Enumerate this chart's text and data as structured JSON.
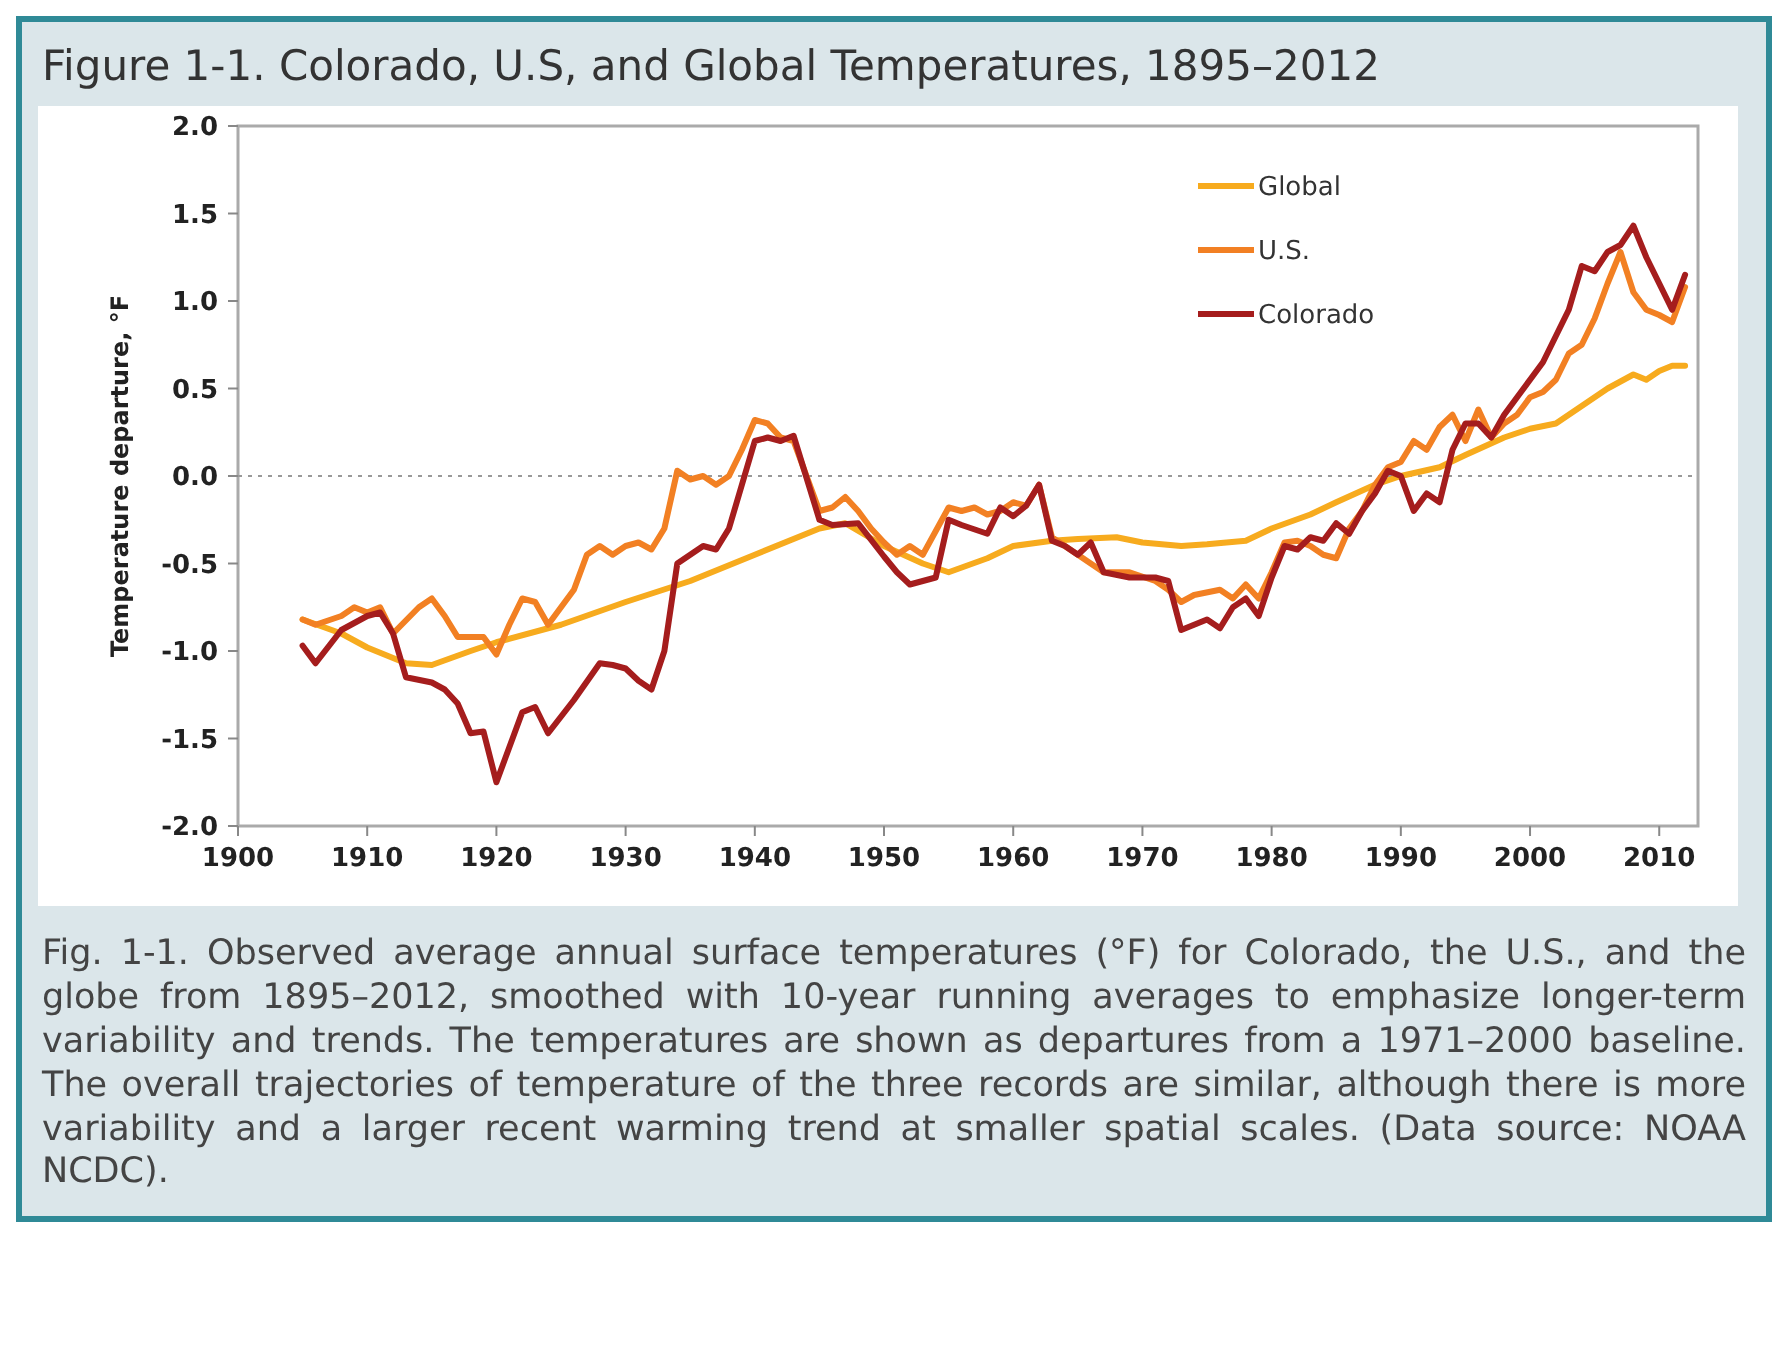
{
  "chart_data": {
    "type": "line",
    "title": "Figure 1-1. Colorado, U.S, and Global Temperatures, 1895–2012",
    "ylabel": "Temperature departure, °F",
    "xlim": [
      1900,
      2013
    ],
    "xticks": [
      1900,
      1910,
      1920,
      1930,
      1940,
      1950,
      1960,
      1970,
      1980,
      1990,
      2000,
      2010
    ],
    "ylim": [
      -2,
      2
    ],
    "yticks": [
      {
        "value": 2,
        "label": "2.0"
      },
      {
        "value": 1.5,
        "label": "1.5"
      },
      {
        "value": 1,
        "label": "1.0"
      },
      {
        "value": 0.5,
        "label": "0.5"
      },
      {
        "value": 0,
        "label": "0.0"
      },
      {
        "value": -0.5,
        "label": "-0.5"
      },
      {
        "value": -1,
        "label": "-1.0"
      },
      {
        "value": -1.5,
        "label": "-1.5"
      },
      {
        "value": -2,
        "label": "-2.0"
      }
    ],
    "grid": false,
    "legend": "top right",
    "marker": "none",
    "line_style": "solid",
    "ref_lines": [
      {
        "axis": "y",
        "value": 0,
        "color": "#999999",
        "line_style": "dotted"
      }
    ],
    "series": [
      {
        "name": "Global",
        "color": "#f7ab1e",
        "x": [
          1905,
          1908,
          1910,
          1913,
          1915,
          1918,
          1920,
          1925,
          1930,
          1935,
          1940,
          1945,
          1947,
          1950,
          1953,
          1955,
          1958,
          1960,
          1963,
          1965,
          1968,
          1970,
          1973,
          1975,
          1978,
          1980,
          1983,
          1985,
          1988,
          1990,
          1993,
          1995,
          1998,
          2000,
          2002,
          2004,
          2006,
          2008,
          2009,
          2010,
          2011,
          2012
        ],
        "values": [
          -0.82,
          -0.9,
          -0.98,
          -1.07,
          -1.08,
          -1.0,
          -0.95,
          -0.85,
          -0.72,
          -0.6,
          -0.45,
          -0.3,
          -0.27,
          -0.4,
          -0.5,
          -0.55,
          -0.47,
          -0.4,
          -0.37,
          -0.36,
          -0.35,
          -0.38,
          -0.4,
          -0.39,
          -0.37,
          -0.3,
          -0.22,
          -0.15,
          -0.05,
          0.0,
          0.05,
          0.12,
          0.22,
          0.27,
          0.3,
          0.4,
          0.5,
          0.58,
          0.55,
          0.6,
          0.63,
          0.63
        ]
      },
      {
        "name": "U.S.",
        "color": "#f28023",
        "x": [
          1905,
          1906,
          1908,
          1909,
          1910,
          1911,
          1912,
          1914,
          1915,
          1916,
          1917,
          1919,
          1920,
          1921,
          1922,
          1923,
          1924,
          1926,
          1927,
          1928,
          1929,
          1930,
          1931,
          1932,
          1933,
          1934,
          1935,
          1936,
          1937,
          1938,
          1939,
          1940,
          1941,
          1942,
          1943,
          1945,
          1946,
          1947,
          1948,
          1949,
          1950,
          1951,
          1952,
          1953,
          1955,
          1956,
          1957,
          1958,
          1959,
          1960,
          1961,
          1962,
          1963,
          1965,
          1967,
          1969,
          1971,
          1972,
          1973,
          1974,
          1976,
          1977,
          1978,
          1979,
          1980,
          1981,
          1982,
          1983,
          1984,
          1985,
          1986,
          1987,
          1988,
          1989,
          1990,
          1991,
          1992,
          1993,
          1994,
          1995,
          1996,
          1997,
          1998,
          1999,
          2000,
          2001,
          2002,
          2003,
          2004,
          2005,
          2006,
          2007,
          2008,
          2009,
          2010,
          2011,
          2012
        ],
        "values": [
          -0.82,
          -0.85,
          -0.8,
          -0.75,
          -0.78,
          -0.75,
          -0.9,
          -0.75,
          -0.7,
          -0.8,
          -0.92,
          -0.92,
          -1.02,
          -0.85,
          -0.7,
          -0.72,
          -0.85,
          -0.65,
          -0.45,
          -0.4,
          -0.45,
          -0.4,
          -0.38,
          -0.42,
          -0.3,
          0.03,
          -0.02,
          0.0,
          -0.05,
          0.0,
          0.15,
          0.32,
          0.3,
          0.22,
          0.2,
          -0.2,
          -0.18,
          -0.12,
          -0.2,
          -0.3,
          -0.38,
          -0.45,
          -0.4,
          -0.45,
          -0.18,
          -0.2,
          -0.18,
          -0.22,
          -0.2,
          -0.15,
          -0.17,
          -0.05,
          -0.35,
          -0.45,
          -0.55,
          -0.55,
          -0.6,
          -0.65,
          -0.72,
          -0.68,
          -0.65,
          -0.7,
          -0.62,
          -0.7,
          -0.55,
          -0.38,
          -0.37,
          -0.4,
          -0.45,
          -0.47,
          -0.3,
          -0.2,
          -0.05,
          0.05,
          0.08,
          0.2,
          0.15,
          0.28,
          0.35,
          0.2,
          0.38,
          0.22,
          0.3,
          0.35,
          0.45,
          0.48,
          0.55,
          0.7,
          0.75,
          0.9,
          1.1,
          1.28,
          1.05,
          0.95,
          0.92,
          0.88,
          1.08
        ]
      },
      {
        "name": "Colorado",
        "color": "#a51d1d",
        "x": [
          1905,
          1906,
          1908,
          1910,
          1911,
          1912,
          1913,
          1915,
          1916,
          1917,
          1918,
          1919,
          1920,
          1922,
          1923,
          1924,
          1926,
          1928,
          1929,
          1930,
          1931,
          1932,
          1933,
          1934,
          1936,
          1937,
          1938,
          1940,
          1941,
          1942,
          1943,
          1945,
          1946,
          1948,
          1950,
          1951,
          1952,
          1953,
          1954,
          1955,
          1956,
          1958,
          1959,
          1960,
          1961,
          1962,
          1963,
          1964,
          1965,
          1966,
          1967,
          1969,
          1971,
          1972,
          1973,
          1974,
          1975,
          1976,
          1977,
          1978,
          1979,
          1980,
          1981,
          1982,
          1983,
          1984,
          1985,
          1986,
          1987,
          1988,
          1989,
          1990,
          1991,
          1992,
          1993,
          1994,
          1995,
          1996,
          1997,
          1998,
          1999,
          2000,
          2001,
          2002,
          2003,
          2004,
          2005,
          2006,
          2007,
          2008,
          2009,
          2010,
          2011,
          2012
        ],
        "values": [
          -0.97,
          -1.07,
          -0.88,
          -0.8,
          -0.78,
          -0.9,
          -1.15,
          -1.18,
          -1.22,
          -1.3,
          -1.47,
          -1.46,
          -1.75,
          -1.35,
          -1.32,
          -1.47,
          -1.28,
          -1.07,
          -1.08,
          -1.1,
          -1.17,
          -1.22,
          -1.0,
          -0.5,
          -0.4,
          -0.42,
          -0.3,
          0.2,
          0.22,
          0.2,
          0.23,
          -0.25,
          -0.28,
          -0.27,
          -0.46,
          -0.55,
          -0.62,
          -0.6,
          -0.58,
          -0.25,
          -0.28,
          -0.33,
          -0.18,
          -0.23,
          -0.17,
          -0.05,
          -0.37,
          -0.4,
          -0.45,
          -0.38,
          -0.55,
          -0.58,
          -0.58,
          -0.6,
          -0.88,
          -0.85,
          -0.82,
          -0.87,
          -0.75,
          -0.7,
          -0.8,
          -0.58,
          -0.4,
          -0.42,
          -0.35,
          -0.37,
          -0.27,
          -0.33,
          -0.2,
          -0.1,
          0.03,
          0.0,
          -0.2,
          -0.1,
          -0.15,
          0.15,
          0.3,
          0.3,
          0.22,
          0.35,
          0.45,
          0.55,
          0.65,
          0.8,
          0.95,
          1.2,
          1.17,
          1.28,
          1.32,
          1.43,
          1.25,
          1.1,
          0.95,
          1.15
        ]
      }
    ],
    "annotations": [
      "Fig. 1-1. Observed average annual surface temperatures (°F) for Colorado, the U.S., and the globe from 1895–2012, smoothed with 10-year running averages to emphasize longer-term variability and trends. The temperatures are shown as departures from a 1971–2000 baseline. The overall trajectories of temperature of the three records are similar, although there is more variability and a larger recent warming trend at smaller spatial scales. (Data source: NOAA NCDC)."
    ]
  }
}
